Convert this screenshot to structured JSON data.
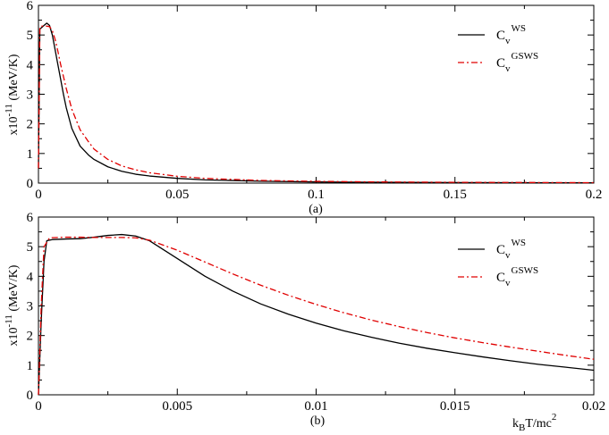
{
  "chart_data": [
    {
      "type": "line",
      "panel_label": "(a)",
      "ylabel": "x10",
      "ylabel_exp": "-11",
      "ylabel_unit": "(MeV/K)",
      "xlim": [
        0,
        0.2
      ],
      "ylim": [
        0,
        6
      ],
      "xticks": [
        0,
        0.05,
        0.1,
        0.15,
        0.2
      ],
      "xtick_labels": [
        "0",
        "0.05",
        "0.1",
        "0.15",
        "0.2"
      ],
      "yticks": [
        0,
        1,
        2,
        3,
        4,
        5,
        6
      ],
      "ytick_labels": [
        "0",
        "1",
        "2",
        "3",
        "4",
        "5",
        "6"
      ],
      "grid": false,
      "legend_position": "top-right",
      "series": [
        {
          "name": "C_v^WS",
          "legend_main": "C",
          "legend_sub": "v",
          "legend_sup": "WS",
          "color": "#000000",
          "dash": "solid",
          "points": [
            [
              0,
              0.5
            ],
            [
              0.0005,
              5.2
            ],
            [
              0.001,
              5.24
            ],
            [
              0.002,
              5.32
            ],
            [
              0.003,
              5.4
            ],
            [
              0.004,
              5.32
            ],
            [
              0.005,
              5.0
            ],
            [
              0.006,
              4.5
            ],
            [
              0.007,
              4.0
            ],
            [
              0.008,
              3.5
            ],
            [
              0.009,
              3.0
            ],
            [
              0.01,
              2.55
            ],
            [
              0.012,
              1.85
            ],
            [
              0.015,
              1.25
            ],
            [
              0.018,
              0.95
            ],
            [
              0.02,
              0.8
            ],
            [
              0.025,
              0.55
            ],
            [
              0.03,
              0.4
            ],
            [
              0.035,
              0.3
            ],
            [
              0.04,
              0.24
            ],
            [
              0.05,
              0.16
            ],
            [
              0.06,
              0.11
            ],
            [
              0.08,
              0.065
            ],
            [
              0.1,
              0.04
            ],
            [
              0.12,
              0.028
            ],
            [
              0.15,
              0.018
            ],
            [
              0.2,
              0.01
            ]
          ]
        },
        {
          "name": "C_v^GSWS",
          "legend_main": "C",
          "legend_sub": "v",
          "legend_sup": "GSWS",
          "color": "#e00000",
          "dash": "dashdot",
          "points": [
            [
              0,
              0.5
            ],
            [
              0.0005,
              5.25
            ],
            [
              0.001,
              5.3
            ],
            [
              0.002,
              5.3
            ],
            [
              0.003,
              5.3
            ],
            [
              0.004,
              5.28
            ],
            [
              0.005,
              5.15
            ],
            [
              0.006,
              4.85
            ],
            [
              0.007,
              4.45
            ],
            [
              0.008,
              4.0
            ],
            [
              0.009,
              3.6
            ],
            [
              0.01,
              3.2
            ],
            [
              0.012,
              2.5
            ],
            [
              0.015,
              1.8
            ],
            [
              0.018,
              1.4
            ],
            [
              0.02,
              1.15
            ],
            [
              0.025,
              0.8
            ],
            [
              0.03,
              0.58
            ],
            [
              0.035,
              0.45
            ],
            [
              0.04,
              0.35
            ],
            [
              0.05,
              0.23
            ],
            [
              0.06,
              0.16
            ],
            [
              0.08,
              0.09
            ],
            [
              0.1,
              0.06
            ],
            [
              0.12,
              0.042
            ],
            [
              0.15,
              0.027
            ],
            [
              0.2,
              0.015
            ]
          ]
        }
      ]
    },
    {
      "type": "line",
      "panel_label": "(b)",
      "xlabel_main": "k",
      "xlabel_sub": "B",
      "xlabel_rest": "T/mc",
      "xlabel_sup": "2",
      "ylabel": "x10",
      "ylabel_exp": "-11",
      "ylabel_unit": "(MeV/K)",
      "xlim": [
        0,
        0.02
      ],
      "ylim": [
        0,
        6
      ],
      "xticks": [
        0,
        0.005,
        0.01,
        0.015,
        0.02
      ],
      "xtick_labels": [
        "0",
        "0.005",
        "0.01",
        "0.015",
        "0.02"
      ],
      "yticks": [
        0,
        1,
        2,
        3,
        4,
        5,
        6
      ],
      "ytick_labels": [
        "0",
        "1",
        "2",
        "3",
        "4",
        "5",
        "6"
      ],
      "grid": false,
      "legend_position": "top-right",
      "series": [
        {
          "name": "C_v^WS",
          "legend_main": "C",
          "legend_sub": "v",
          "legend_sup": "WS",
          "color": "#000000",
          "dash": "solid",
          "points": [
            [
              0,
              0.0
            ],
            [
              0.0001,
              2.5
            ],
            [
              0.0002,
              4.5
            ],
            [
              0.0003,
              5.2
            ],
            [
              0.0005,
              5.24
            ],
            [
              0.001,
              5.26
            ],
            [
              0.0015,
              5.27
            ],
            [
              0.002,
              5.32
            ],
            [
              0.0025,
              5.38
            ],
            [
              0.003,
              5.41
            ],
            [
              0.0035,
              5.36
            ],
            [
              0.004,
              5.2
            ],
            [
              0.005,
              4.6
            ],
            [
              0.006,
              4.0
            ],
            [
              0.007,
              3.5
            ],
            [
              0.008,
              3.07
            ],
            [
              0.009,
              2.72
            ],
            [
              0.01,
              2.42
            ],
            [
              0.011,
              2.16
            ],
            [
              0.012,
              1.94
            ],
            [
              0.013,
              1.74
            ],
            [
              0.014,
              1.57
            ],
            [
              0.015,
              1.42
            ],
            [
              0.016,
              1.28
            ],
            [
              0.017,
              1.15
            ],
            [
              0.018,
              1.03
            ],
            [
              0.019,
              0.93
            ],
            [
              0.02,
              0.83
            ]
          ]
        },
        {
          "name": "C_v^GSWS",
          "legend_main": "C",
          "legend_sub": "v",
          "legend_sup": "GSWS",
          "color": "#e00000",
          "dash": "dashdot",
          "points": [
            [
              0,
              0.0
            ],
            [
              0.0001,
              3.0
            ],
            [
              0.0002,
              5.0
            ],
            [
              0.0004,
              5.3
            ],
            [
              0.001,
              5.32
            ],
            [
              0.0015,
              5.32
            ],
            [
              0.002,
              5.31
            ],
            [
              0.003,
              5.31
            ],
            [
              0.0035,
              5.3
            ],
            [
              0.004,
              5.22
            ],
            [
              0.005,
              4.88
            ],
            [
              0.006,
              4.48
            ],
            [
              0.007,
              4.08
            ],
            [
              0.008,
              3.7
            ],
            [
              0.009,
              3.36
            ],
            [
              0.01,
              3.05
            ],
            [
              0.011,
              2.77
            ],
            [
              0.012,
              2.52
            ],
            [
              0.013,
              2.3
            ],
            [
              0.014,
              2.1
            ],
            [
              0.015,
              1.92
            ],
            [
              0.016,
              1.76
            ],
            [
              0.017,
              1.61
            ],
            [
              0.018,
              1.47
            ],
            [
              0.019,
              1.33
            ],
            [
              0.02,
              1.2
            ]
          ]
        }
      ]
    }
  ]
}
